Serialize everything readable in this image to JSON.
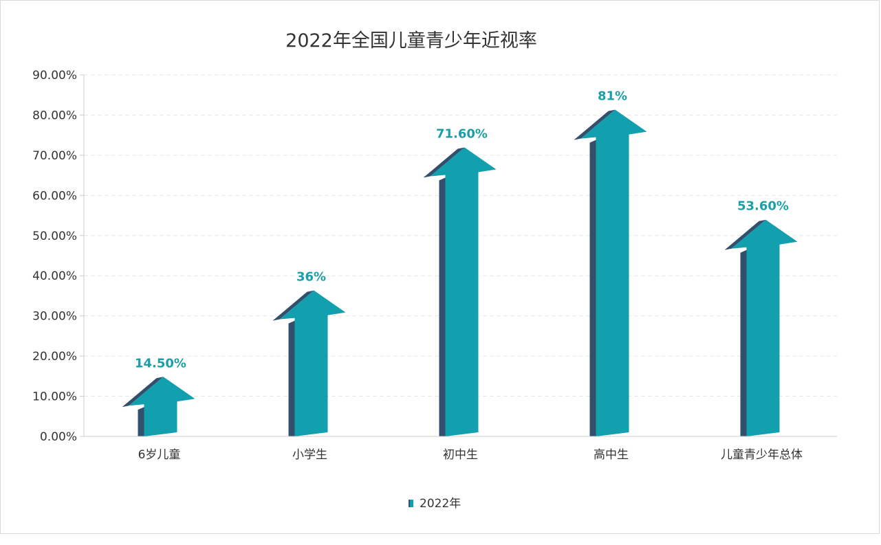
{
  "chart_data": {
    "type": "bar",
    "title": "2022年全国儿童青少年近视率",
    "categories": [
      "6岁儿童",
      "小学生",
      "初中生",
      "高中生",
      "儿童青少年总体"
    ],
    "series": [
      {
        "name": "2022年",
        "values": [
          14.5,
          36,
          71.6,
          81,
          53.6
        ]
      }
    ],
    "data_labels": [
      "14.50%",
      "36%",
      "71.60%",
      "81%",
      "53.60%"
    ],
    "y_tick_labels": [
      "0.00%",
      "10.00%",
      "20.00%",
      "30.00%",
      "40.00%",
      "50.00%",
      "60.00%",
      "70.00%",
      "80.00%",
      "90.00%"
    ],
    "ylim": [
      0,
      90
    ],
    "grid": true,
    "legend_position": "bottom",
    "bar_style": "3d-arrow",
    "colors": {
      "front": "#129fae",
      "side": "#324f6c",
      "label": "#1a9ea8",
      "grid": "#e6e6e6",
      "text": "#333333"
    }
  }
}
